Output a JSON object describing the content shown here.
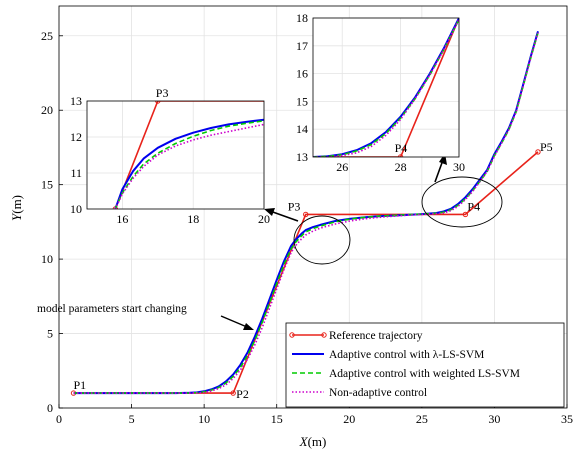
{
  "chart_data": {
    "type": "line",
    "xlabel_var": "X",
    "xlabel_unit": "(m)",
    "ylabel_var": "Y",
    "ylabel_unit": "(m)",
    "xlim": [
      0,
      35
    ],
    "ylim": [
      0,
      27
    ],
    "xticks": [
      0,
      5,
      10,
      15,
      20,
      25,
      30,
      35
    ],
    "yticks": [
      0,
      5,
      10,
      15,
      20,
      25
    ],
    "grid": true,
    "legend_position": "bottom-right",
    "points": [
      {
        "label": "P1",
        "x": 1,
        "y": 1
      },
      {
        "label": "P2",
        "x": 12,
        "y": 1
      },
      {
        "label": "P3",
        "x": 17,
        "y": 13
      },
      {
        "label": "P4",
        "x": 28,
        "y": 13
      },
      {
        "label": "P5",
        "x": 33,
        "y": 17.2
      }
    ],
    "annotation": "model parameters start changing",
    "series": [
      {
        "name": "Reference trajectory",
        "color": "#e8231b",
        "style": "solid-marker",
        "x": [
          1,
          12,
          17,
          28,
          33
        ],
        "y": [
          1,
          1,
          13,
          13,
          17.2
        ]
      },
      {
        "name": "Adaptive control with λ-LS-SVM",
        "color": "#0000ee",
        "style": "solid",
        "x": [
          1,
          8,
          9,
          9.5,
          10,
          10.5,
          11,
          11.5,
          12,
          12.5,
          13,
          13.5,
          14,
          14.5,
          15,
          15.5,
          16,
          16.3,
          16.7,
          17,
          17.5,
          18,
          19,
          20,
          21,
          22,
          23,
          24,
          25,
          26,
          26.5,
          27,
          27.5,
          28,
          28.5,
          29,
          29.5,
          30,
          30.5,
          31,
          31.5,
          32,
          32.5,
          33
        ],
        "y": [
          1,
          1,
          1.02,
          1.05,
          1.12,
          1.25,
          1.45,
          1.78,
          2.25,
          2.9,
          3.75,
          4.8,
          6.0,
          7.3,
          8.6,
          9.85,
          10.9,
          11.3,
          11.7,
          11.95,
          12.15,
          12.3,
          12.55,
          12.7,
          12.8,
          12.88,
          12.92,
          12.97,
          13.02,
          13.1,
          13.2,
          13.38,
          13.7,
          14.15,
          14.7,
          15.35,
          16.0,
          17.05,
          17.9,
          18.8,
          20.0,
          21.8,
          23.6,
          25.3
        ]
      },
      {
        "name": "Adaptive control with weighted LS-SVM",
        "color": "#00cc00",
        "style": "dashed",
        "x": [
          1,
          8,
          9,
          9.5,
          10,
          10.5,
          11,
          11.5,
          12,
          12.5,
          13,
          13.5,
          14,
          14.5,
          15,
          15.5,
          16,
          16.3,
          16.7,
          17,
          17.5,
          18,
          19,
          20,
          21,
          22,
          23,
          24,
          25,
          26,
          26.5,
          27,
          27.5,
          28,
          28.5,
          29,
          29.5,
          30,
          30.5,
          31,
          31.5,
          32,
          32.5,
          33
        ],
        "y": [
          1,
          1,
          1.01,
          1.03,
          1.09,
          1.2,
          1.38,
          1.68,
          2.12,
          2.72,
          3.55,
          4.55,
          5.75,
          7.05,
          8.35,
          9.65,
          10.7,
          11.12,
          11.55,
          11.82,
          12.05,
          12.22,
          12.5,
          12.68,
          12.8,
          12.88,
          12.93,
          12.98,
          13.02,
          13.08,
          13.15,
          13.32,
          13.62,
          14.05,
          14.6,
          15.22,
          15.88,
          16.95,
          17.8,
          18.7,
          19.9,
          21.7,
          23.5,
          25.2
        ]
      },
      {
        "name": "Non-adaptive control",
        "color": "#cc00cc",
        "style": "dotted",
        "x": [
          1,
          8,
          9,
          9.5,
          10,
          10.5,
          11,
          11.5,
          12,
          12.5,
          13,
          13.5,
          14,
          14.5,
          15,
          15.5,
          16,
          16.3,
          16.7,
          17,
          17.5,
          18,
          19,
          20,
          21,
          22,
          23,
          24,
          25,
          26,
          26.5,
          27,
          27.5,
          28,
          28.5,
          29,
          29.5,
          30,
          30.5,
          31,
          31.5,
          32,
          32.5,
          33
        ],
        "y": [
          1,
          1,
          1.0,
          1.01,
          1.05,
          1.14,
          1.3,
          1.56,
          1.98,
          2.55,
          3.3,
          4.25,
          5.4,
          6.7,
          8.0,
          9.3,
          10.45,
          10.9,
          11.35,
          11.62,
          11.88,
          12.08,
          12.35,
          12.55,
          12.7,
          12.8,
          12.88,
          12.95,
          13.0,
          13.05,
          13.1,
          13.25,
          13.55,
          14.0,
          14.55,
          15.2,
          15.9,
          16.9,
          17.8,
          18.7,
          19.9,
          21.7,
          23.5,
          25.2
        ]
      }
    ],
    "insets": [
      {
        "name": "inset-p3",
        "xlim": [
          15,
          20
        ],
        "ylim": [
          10,
          13
        ],
        "xticks": [
          16,
          18,
          20
        ],
        "yticks": [
          10,
          11,
          12,
          13
        ],
        "point_label": "P3",
        "series_x": [
          15.8,
          16,
          16.3,
          16.6,
          17,
          17.5,
          18,
          18.5,
          19,
          19.5,
          20
        ],
        "series_y": {
          "Reference trajectory": {
            "x": [
              15.8,
              17,
              20
            ],
            "y": [
              10.0,
              13,
              13
            ]
          },
          "Adaptive control with λ-LS-SVM": [
            10.0,
            10.55,
            11.05,
            11.4,
            11.7,
            11.95,
            12.12,
            12.25,
            12.35,
            12.42,
            12.48
          ],
          "Adaptive control with weighted LS-SVM": [
            10.0,
            10.45,
            10.9,
            11.25,
            11.55,
            11.82,
            12.02,
            12.18,
            12.3,
            12.38,
            12.45
          ],
          "Non-adaptive control": [
            10.0,
            10.42,
            10.85,
            11.18,
            11.5,
            11.75,
            11.92,
            12.05,
            12.15,
            12.25,
            12.35
          ]
        }
      },
      {
        "name": "inset-p4",
        "xlim": [
          25,
          30
        ],
        "ylim": [
          13,
          18
        ],
        "xticks": [
          26,
          28,
          30
        ],
        "yticks": [
          13,
          14,
          15,
          16,
          17,
          18
        ],
        "point_label": "P4",
        "series_x": [
          25,
          25.5,
          26,
          26.5,
          27,
          27.5,
          28,
          28.5,
          29,
          29.5,
          30
        ],
        "series_y": {
          "Reference trajectory": {
            "x": [
              25,
              28,
              30
            ],
            "y": [
              13,
              13,
              18
            ]
          },
          "Adaptive control with λ-LS-SVM": [
            13.0,
            13.03,
            13.1,
            13.25,
            13.5,
            13.9,
            14.45,
            15.15,
            16.0,
            16.95,
            18.0
          ],
          "Adaptive control with weighted LS-SVM": [
            13.0,
            13.02,
            13.08,
            13.22,
            13.45,
            13.85,
            14.4,
            15.1,
            15.95,
            16.9,
            17.95
          ],
          "Non-adaptive control": [
            13.0,
            13.0,
            13.05,
            13.15,
            13.38,
            13.78,
            14.35,
            15.1,
            15.95,
            16.9,
            17.95
          ]
        }
      }
    ]
  }
}
